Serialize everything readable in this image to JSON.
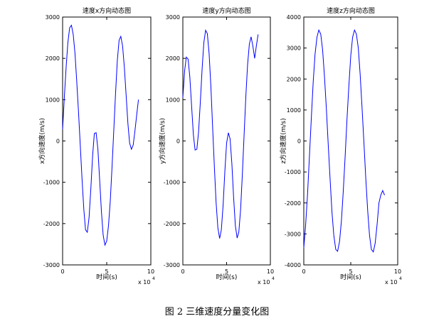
{
  "figure": {
    "caption": "图 2  三维速度分量变化图"
  },
  "chart_data": [
    {
      "type": "line",
      "title": "速度x方向动态图",
      "xlabel": "时间(s)",
      "ylabel": "x方向速度(m/s)",
      "x_multiplier": "x 10",
      "x_multiplier_exp": "4",
      "xlim": [
        0,
        10
      ],
      "ylim": [
        -3000,
        3000
      ],
      "x_ticks": [
        0,
        5,
        10
      ],
      "y_ticks": [
        3000,
        2000,
        1000,
        0,
        -1000,
        -2000,
        -3000
      ],
      "grid": false,
      "line_color": "#0000ff",
      "series": [
        {
          "x": [
            0.0,
            0.2,
            0.4,
            0.6,
            0.8,
            1.0,
            1.2,
            1.4,
            1.6,
            1.8,
            2.0,
            2.2,
            2.4,
            2.6,
            2.8,
            3.0,
            3.2,
            3.4,
            3.6,
            3.8,
            4.0,
            4.2,
            4.4,
            4.6,
            4.8,
            5.0,
            5.2,
            5.4,
            5.6,
            5.8,
            6.0,
            6.2,
            6.4,
            6.6,
            6.8,
            7.0,
            7.2,
            7.4,
            7.6,
            7.8,
            8.0,
            8.2,
            8.4,
            8.6
          ],
          "y": [
            280,
            1080,
            1800,
            2380,
            2740,
            2800,
            2580,
            2120,
            1460,
            720,
            -100,
            -920,
            -1650,
            -2150,
            -2210,
            -1850,
            -1150,
            -350,
            180,
            200,
            -200,
            -950,
            -1720,
            -2280,
            -2520,
            -2420,
            -2050,
            -1450,
            -650,
            250,
            1150,
            1950,
            2440,
            2530,
            2300,
            1780,
            1100,
            420,
            -50,
            -200,
            -100,
            250,
            640,
            1000
          ]
        }
      ]
    },
    {
      "type": "line",
      "title": "速度y方向动态图",
      "xlabel": "时间(s)",
      "ylabel": "y方向速度(m/s)",
      "x_multiplier": "x 10",
      "x_multiplier_exp": "4",
      "xlim": [
        0,
        10
      ],
      "ylim": [
        -3000,
        3000
      ],
      "x_ticks": [
        0,
        5,
        10
      ],
      "y_ticks": [
        3000,
        2000,
        1000,
        0,
        -1000,
        -2000,
        -3000
      ],
      "grid": false,
      "line_color": "#0000ff",
      "series": [
        {
          "x": [
            0.0,
            0.2,
            0.4,
            0.6,
            0.8,
            1.0,
            1.2,
            1.4,
            1.6,
            1.8,
            2.0,
            2.2,
            2.4,
            2.6,
            2.8,
            3.0,
            3.2,
            3.4,
            3.6,
            3.8,
            4.0,
            4.2,
            4.4,
            4.6,
            4.8,
            5.0,
            5.2,
            5.4,
            5.6,
            5.8,
            6.0,
            6.2,
            6.4,
            6.6,
            6.8,
            7.0,
            7.2,
            7.4,
            7.6,
            7.8,
            8.0,
            8.2,
            8.4,
            8.6
          ],
          "y": [
            1050,
            1700,
            2030,
            1980,
            1550,
            850,
            150,
            -220,
            -200,
            220,
            950,
            1750,
            2380,
            2680,
            2600,
            2120,
            1320,
            350,
            -620,
            -1480,
            -2100,
            -2360,
            -2150,
            -1550,
            -750,
            -50,
            200,
            50,
            -550,
            -1350,
            -2050,
            -2350,
            -2200,
            -1650,
            -820,
            150,
            1100,
            1850,
            2350,
            2520,
            2300,
            2000,
            2300,
            2580
          ]
        }
      ]
    },
    {
      "type": "line",
      "title": "速度z方向动态图",
      "xlabel": "时间(s)",
      "ylabel": "z方向速度(m/s)",
      "x_multiplier": "x 10",
      "x_multiplier_exp": "4",
      "xlim": [
        0,
        10
      ],
      "ylim": [
        -4000,
        4000
      ],
      "x_ticks": [
        0,
        5,
        10
      ],
      "y_ticks": [
        4000,
        3000,
        2000,
        1000,
        0,
        -1000,
        -2000,
        -3000,
        -4000
      ],
      "grid": false,
      "line_color": "#0000ff",
      "series": [
        {
          "x": [
            0.0,
            0.2,
            0.4,
            0.6,
            0.8,
            1.0,
            1.2,
            1.4,
            1.6,
            1.8,
            2.0,
            2.2,
            2.4,
            2.6,
            2.8,
            3.0,
            3.2,
            3.4,
            3.6,
            3.8,
            4.0,
            4.2,
            4.4,
            4.6,
            4.8,
            5.0,
            5.2,
            5.4,
            5.6,
            5.8,
            6.0,
            6.2,
            6.4,
            6.6,
            6.8,
            7.0,
            7.2,
            7.4,
            7.6,
            7.8,
            8.0,
            8.2,
            8.4,
            8.6
          ],
          "y": [
            -3450,
            -2700,
            -1700,
            -500,
            750,
            1900,
            2800,
            3350,
            3580,
            3450,
            2950,
            2100,
            1050,
            -100,
            -1250,
            -2300,
            -3050,
            -3500,
            -3560,
            -3250,
            -2600,
            -1650,
            -500,
            700,
            1800,
            2750,
            3350,
            3580,
            3450,
            3000,
            2150,
            1100,
            -50,
            -1200,
            -2250,
            -3050,
            -3500,
            -3580,
            -3300,
            -2700,
            -2000,
            -1750,
            -1600,
            -1750
          ]
        }
      ]
    }
  ]
}
